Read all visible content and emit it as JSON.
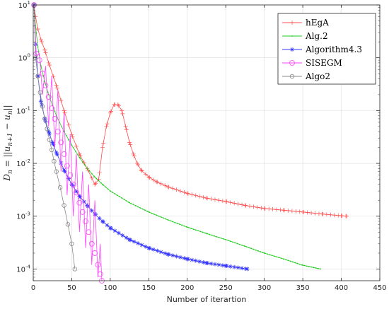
{
  "chart_data": {
    "type": "line",
    "title": "",
    "xlabel": "Number of iterartion",
    "ylabel": "D_n = ||u_{n+1} - u_n||",
    "ylabel_parts": {
      "lhs": "D",
      "lhs_sub": "n",
      "mid": " = ||",
      "u1": "u",
      "u1_sub": "n+1",
      "minus": " − ",
      "u2": "u",
      "u2_sub": "n",
      "rhs": "||"
    },
    "xlim": [
      0,
      450
    ],
    "ylim": [
      6e-05,
      10
    ],
    "yscale": "log",
    "grid": true,
    "legend_position": "top-right",
    "x_ticks": [
      0,
      50,
      100,
      150,
      200,
      250,
      300,
      350,
      400,
      450
    ],
    "y_ticks": [
      {
        "value": 0.0001,
        "base": "10",
        "exp": "-4"
      },
      {
        "value": 0.001,
        "base": "10",
        "exp": "-3"
      },
      {
        "value": 0.01,
        "base": "10",
        "exp": "-2"
      },
      {
        "value": 0.1,
        "base": "10",
        "exp": "-1"
      },
      {
        "value": 1,
        "base": "10",
        "exp": "0"
      },
      {
        "value": 10,
        "base": "10",
        "exp": "1"
      }
    ],
    "series": [
      {
        "name": "hEgA",
        "color": "#ff4d4d",
        "marker": "plus",
        "x": [
          1,
          3,
          6,
          10,
          15,
          20,
          30,
          40,
          50,
          60,
          70,
          80,
          85,
          90,
          95,
          100,
          105,
          110,
          115,
          120,
          125,
          130,
          135,
          140,
          150,
          160,
          175,
          200,
          225,
          250,
          275,
          300,
          325,
          350,
          375,
          400,
          407
        ],
        "y": [
          10,
          6,
          3.5,
          2.2,
          1.4,
          0.8,
          0.3,
          0.1,
          0.035,
          0.015,
          0.008,
          0.004,
          0.005,
          0.02,
          0.05,
          0.09,
          0.13,
          0.13,
          0.1,
          0.05,
          0.025,
          0.015,
          0.01,
          0.0075,
          0.0055,
          0.0045,
          0.0036,
          0.0027,
          0.0022,
          0.0019,
          0.0016,
          0.0014,
          0.0013,
          0.0012,
          0.0011,
          0.00102,
          0.001
        ]
      },
      {
        "name": "Alg.2",
        "color": "#22cc22",
        "marker": "dot",
        "x": [
          1,
          3,
          6,
          10,
          15,
          20,
          30,
          40,
          50,
          60,
          70,
          80,
          90,
          100,
          125,
          150,
          175,
          200,
          225,
          250,
          275,
          300,
          325,
          350,
          373
        ],
        "y": [
          10,
          4,
          1.6,
          0.7,
          0.35,
          0.2,
          0.08,
          0.04,
          0.022,
          0.013,
          0.008,
          0.0055,
          0.004,
          0.003,
          0.0018,
          0.0012,
          0.00085,
          0.00062,
          0.00047,
          0.00036,
          0.00027,
          0.0002,
          0.000155,
          0.000118,
          0.0001
        ]
      },
      {
        "name": "Algorithm4.3",
        "color": "#3333ff",
        "marker": "asterisk",
        "x": [
          1,
          3,
          6,
          10,
          15,
          20,
          25,
          30,
          40,
          50,
          60,
          70,
          80,
          90,
          100,
          125,
          150,
          175,
          200,
          225,
          250,
          278
        ],
        "y": [
          10,
          1.8,
          0.45,
          0.15,
          0.07,
          0.04,
          0.025,
          0.016,
          0.0075,
          0.004,
          0.0024,
          0.0016,
          0.0011,
          0.0008,
          0.0006,
          0.00036,
          0.00025,
          0.00019,
          0.000155,
          0.00013,
          0.000115,
          0.0001
        ]
      },
      {
        "name": "SISEGM",
        "color": "#ff44ff",
        "marker": "circle",
        "x": [
          1,
          4,
          8,
          12,
          16,
          20,
          24,
          28,
          32,
          36,
          40,
          44,
          48,
          52,
          56,
          60,
          64,
          68,
          72,
          76,
          80,
          84,
          87,
          89
        ],
        "y": [
          10,
          1.2,
          0.9,
          0.5,
          0.3,
          0.18,
          0.11,
          0.07,
          0.04,
          0.025,
          0.015,
          0.009,
          0.006,
          0.004,
          0.0028,
          0.0018,
          0.0012,
          0.0008,
          0.0005,
          0.0003,
          0.0002,
          0.00012,
          8e-05,
          6e-05
        ],
        "upper": [
          10,
          1.3,
          1.2,
          0.9,
          0.7,
          0.55,
          0.45,
          0.35,
          0.25,
          0.15,
          0.09,
          0.05,
          0.035,
          0.025,
          0.015,
          0.01,
          0.007,
          0.0055,
          0.004,
          0.003,
          0.002,
          0.0012,
          0.0003,
          6e-05
        ],
        "lower": [
          10,
          1.1,
          0.5,
          0.2,
          0.1,
          0.05,
          0.03,
          0.02,
          0.012,
          0.007,
          0.004,
          0.0025,
          0.0015,
          0.001,
          0.0007,
          0.0005,
          0.00035,
          0.00025,
          0.00018,
          0.00012,
          9e-05,
          7e-05,
          6e-05,
          6e-05
        ]
      },
      {
        "name": "Algo2",
        "color": "#888888",
        "marker": "circle-small",
        "x": [
          1,
          3,
          6,
          9,
          12,
          15,
          18,
          21,
          24,
          27,
          30,
          35,
          40,
          45,
          50,
          54
        ],
        "y": [
          10,
          1.0,
          0.45,
          0.22,
          0.12,
          0.07,
          0.045,
          0.028,
          0.018,
          0.011,
          0.007,
          0.0035,
          0.0016,
          0.0007,
          0.0003,
          0.0001
        ]
      }
    ]
  }
}
